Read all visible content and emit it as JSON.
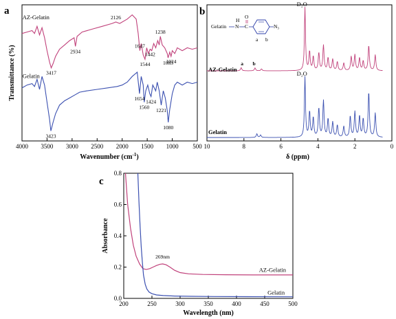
{
  "panels": {
    "a": {
      "label": "a"
    },
    "b": {
      "label": "b"
    },
    "c": {
      "label": "c"
    }
  },
  "colors": {
    "magenta": "#c0407a",
    "blue": "#3a4fb0",
    "molecule": "#2d3fa8"
  },
  "chart_data": [
    {
      "panel": "a",
      "type": "line",
      "title": "",
      "xlabel": "Wavenumber (cm⁻¹)",
      "ylabel": "Transmittance (%)",
      "xlim": [
        4000,
        500
      ],
      "xticks": [
        4000,
        3500,
        3000,
        2500,
        2000,
        1500,
        1000,
        500
      ],
      "grid": false,
      "series": [
        {
          "name": "AZ-Gelatin",
          "color": "#c0407a",
          "x": [
            4000,
            3900,
            3800,
            3750,
            3700,
            3650,
            3600,
            3550,
            3500,
            3450,
            3417,
            3380,
            3330,
            3250,
            3150,
            3050,
            2960,
            2934,
            2900,
            2800,
            2600,
            2400,
            2200,
            2126,
            2050,
            1900,
            1800,
            1720,
            1680,
            1647,
            1620,
            1580,
            1544,
            1510,
            1480,
            1442,
            1410,
            1370,
            1330,
            1290,
            1260,
            1238,
            1200,
            1150,
            1100,
            1083,
            1050,
            1024,
            1000,
            950,
            900,
            800,
            700,
            600,
            500
          ],
          "y": [
            80,
            81,
            82,
            80,
            85,
            79,
            84,
            77,
            68,
            60,
            56,
            59,
            64,
            69,
            72,
            75,
            77,
            71,
            78,
            81,
            83,
            85,
            87,
            88,
            87,
            90,
            93,
            90,
            80,
            68,
            73,
            65,
            62,
            70,
            66,
            69,
            68,
            73,
            70,
            75,
            72,
            78,
            72,
            70,
            66,
            63,
            67,
            64,
            68,
            66,
            70,
            68,
            70,
            69,
            70
          ],
          "annotations": [
            {
              "x": 3417,
              "text": "3417"
            },
            {
              "x": 2934,
              "text": "2934"
            },
            {
              "x": 2126,
              "text": "2126"
            },
            {
              "x": 1647,
              "text": "1647"
            },
            {
              "x": 1544,
              "text": "1544"
            },
            {
              "x": 1442,
              "text": "1442"
            },
            {
              "x": 1238,
              "text": "1238"
            },
            {
              "x": 1083,
              "text": "1083"
            },
            {
              "x": 1024,
              "text": "1024"
            }
          ]
        },
        {
          "name": "Gelatin",
          "color": "#3a4fb0",
          "x": [
            4000,
            3900,
            3800,
            3750,
            3700,
            3650,
            3600,
            3550,
            3500,
            3450,
            3423,
            3380,
            3330,
            3250,
            3150,
            3050,
            2950,
            2850,
            2700,
            2500,
            2300,
            2100,
            2000,
            1900,
            1800,
            1700,
            1654,
            1620,
            1580,
            1560,
            1530,
            1490,
            1450,
            1424,
            1390,
            1330,
            1300,
            1260,
            1221,
            1180,
            1140,
            1100,
            1080,
            1050,
            1000,
            950,
            900,
            800,
            700,
            600,
            500
          ],
          "y": [
            42,
            44,
            45,
            43,
            48,
            41,
            50,
            44,
            32,
            20,
            12,
            18,
            24,
            30,
            33,
            35,
            37,
            39,
            40,
            41,
            42,
            43,
            44,
            46,
            50,
            53,
            38,
            50,
            44,
            32,
            40,
            44,
            38,
            36,
            44,
            40,
            46,
            40,
            30,
            40,
            35,
            26,
            18,
            27,
            38,
            44,
            46,
            44,
            46,
            45,
            46
          ],
          "annotations": [
            {
              "x": 3423,
              "text": "3423"
            },
            {
              "x": 1654,
              "text": "1654"
            },
            {
              "x": 1560,
              "text": "1560"
            },
            {
              "x": 1424,
              "text": "1424"
            },
            {
              "x": 1221,
              "text": "1221"
            },
            {
              "x": 1080,
              "text": "1080"
            }
          ]
        }
      ]
    },
    {
      "panel": "b",
      "type": "line",
      "title": "",
      "xlabel": "δ (ppm)",
      "ylabel": "",
      "xlim": [
        10,
        0
      ],
      "xticks": [
        10,
        8,
        6,
        4,
        2,
        0
      ],
      "grid": false,
      "molecule": {
        "left_label": "Gelatin",
        "atom_h": "H",
        "atom_o": "O",
        "ring_a": "a",
        "ring_b": "b",
        "group": "N₃"
      },
      "series": [
        {
          "name": "AZ-Gelatin",
          "color": "#c0407a",
          "solvent_label": "D₂O",
          "peak_labels": [
            {
              "ppm": 8.1,
              "text": "a"
            },
            {
              "ppm": 7.45,
              "text": "b"
            }
          ],
          "peaks": [
            [
              8.15,
              0.05
            ],
            [
              7.4,
              0.045
            ],
            [
              7.05,
              0.03
            ],
            [
              4.7,
              1.0
            ],
            [
              4.45,
              0.3
            ],
            [
              4.25,
              0.22
            ],
            [
              3.95,
              0.28
            ],
            [
              3.7,
              0.4
            ],
            [
              3.45,
              0.2
            ],
            [
              3.2,
              0.18
            ],
            [
              2.95,
              0.14
            ],
            [
              2.6,
              0.12
            ],
            [
              2.2,
              0.22
            ],
            [
              2.0,
              0.25
            ],
            [
              1.75,
              0.2
            ],
            [
              1.55,
              0.15
            ],
            [
              1.25,
              0.4
            ],
            [
              0.9,
              0.25
            ]
          ]
        },
        {
          "name": "Gelatin",
          "color": "#3a4fb0",
          "solvent_label": "D₂O",
          "peak_labels": [],
          "peaks": [
            [
              7.3,
              0.06
            ],
            [
              7.1,
              0.04
            ],
            [
              4.7,
              1.0
            ],
            [
              4.45,
              0.42
            ],
            [
              4.25,
              0.32
            ],
            [
              3.95,
              0.48
            ],
            [
              3.7,
              0.6
            ],
            [
              3.45,
              0.3
            ],
            [
              3.2,
              0.25
            ],
            [
              2.95,
              0.2
            ],
            [
              2.6,
              0.18
            ],
            [
              2.25,
              0.35
            ],
            [
              2.0,
              0.42
            ],
            [
              1.75,
              0.35
            ],
            [
              1.55,
              0.3
            ],
            [
              1.25,
              0.75
            ],
            [
              0.9,
              0.4
            ]
          ]
        }
      ]
    },
    {
      "panel": "c",
      "type": "line",
      "title": "",
      "xlabel": "Wavelength (nm)",
      "ylabel": "Absorbance",
      "xlim": [
        200,
        500
      ],
      "ylim": [
        0.0,
        0.8
      ],
      "xticks": [
        200,
        250,
        300,
        350,
        400,
        450,
        500
      ],
      "yticks": [
        0.0,
        0.2,
        0.4,
        0.6,
        0.8
      ],
      "grid": false,
      "series": [
        {
          "name": "AZ-Gelatin",
          "color": "#c0407a",
          "x": [
            203,
            207,
            212,
            217,
            222,
            228,
            234,
            240,
            246,
            252,
            258,
            264,
            269,
            275,
            282,
            290,
            300,
            315,
            340,
            380,
            430,
            500
          ],
          "y": [
            0.8,
            0.6,
            0.45,
            0.34,
            0.27,
            0.22,
            0.19,
            0.185,
            0.19,
            0.2,
            0.21,
            0.218,
            0.22,
            0.215,
            0.2,
            0.18,
            0.165,
            0.157,
            0.153,
            0.151,
            0.15,
            0.15
          ],
          "annotations": [
            {
              "x": 269,
              "y": 0.22,
              "text": "269nm"
            }
          ]
        },
        {
          "name": "Gelatin",
          "color": "#3a4fb0",
          "x": [
            225,
            227,
            229,
            231,
            233,
            235,
            238,
            241,
            245,
            250,
            258,
            270,
            290,
            320,
            360,
            420,
            500
          ],
          "y": [
            0.8,
            0.62,
            0.46,
            0.33,
            0.23,
            0.15,
            0.09,
            0.06,
            0.04,
            0.03,
            0.022,
            0.018,
            0.015,
            0.013,
            0.012,
            0.011,
            0.01
          ]
        }
      ]
    }
  ]
}
